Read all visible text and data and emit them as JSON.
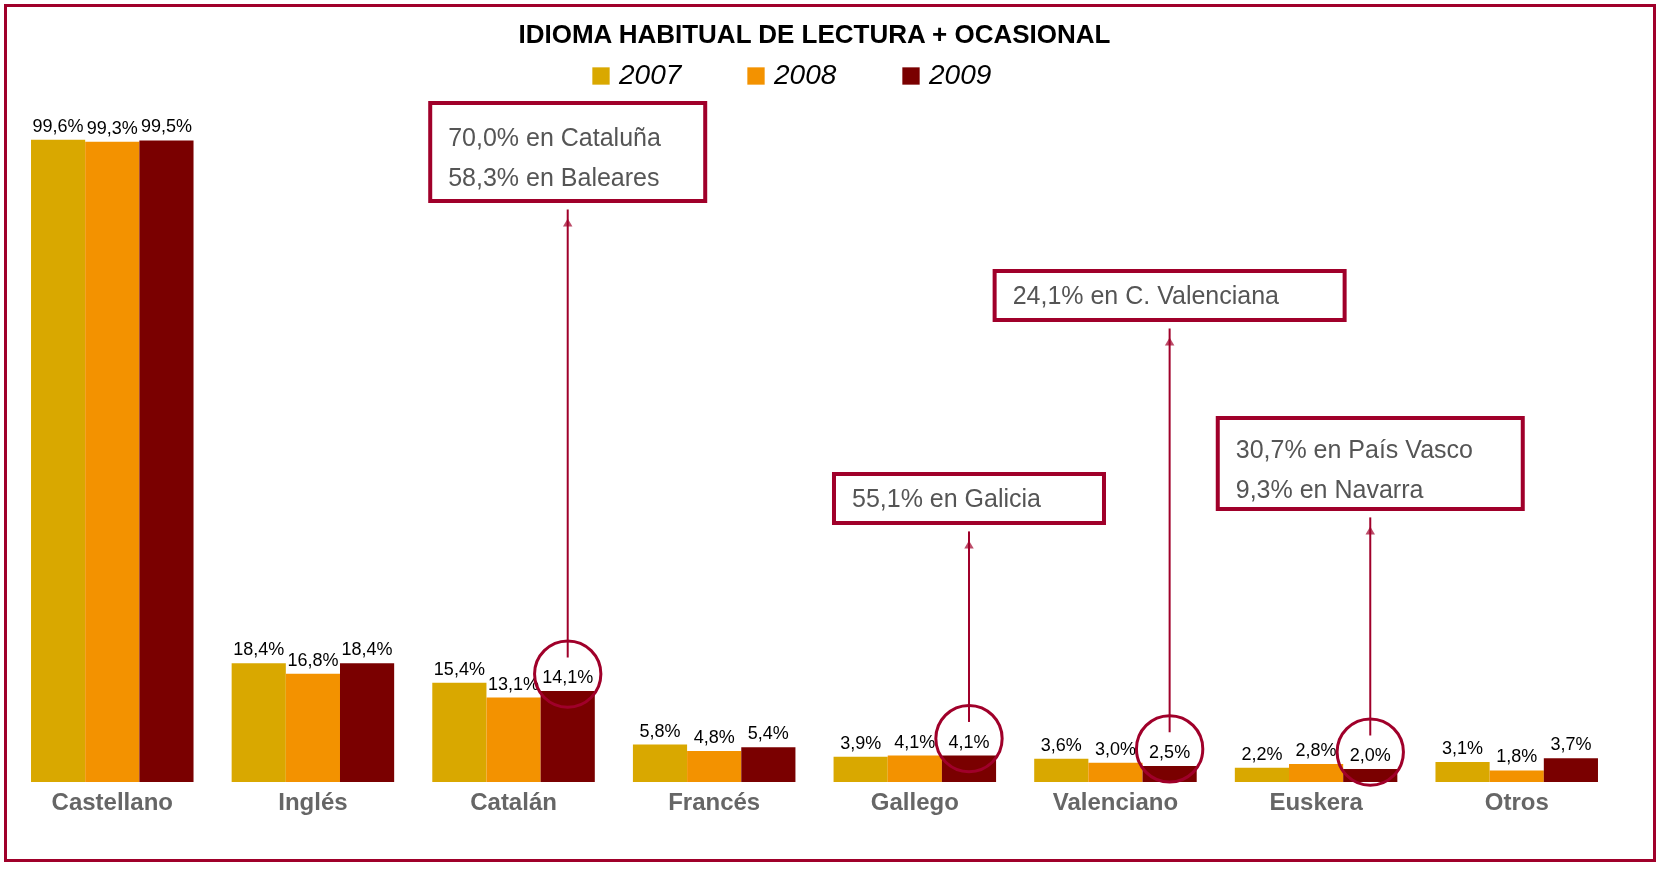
{
  "chart_data": {
    "type": "bar",
    "title": "IDIOMA HABITUAL DE LECTURA + OCASIONAL",
    "categories": [
      "Castellano",
      "Inglés",
      "Catalán",
      "Francés",
      "Gallego",
      "Valenciano",
      "Euskera",
      "Otros"
    ],
    "series": [
      {
        "name": "2007",
        "color": "#d9a800",
        "values": [
          99.6,
          18.4,
          15.4,
          5.8,
          3.9,
          3.6,
          2.2,
          3.1
        ],
        "value_labels": [
          "99,6%",
          "18,4%",
          "15,4%",
          "5,8%",
          "3,9%",
          "3,6%",
          "2,2%",
          "3,1%"
        ]
      },
      {
        "name": "2008",
        "color": "#f39200",
        "values": [
          99.3,
          16.8,
          13.1,
          4.8,
          4.1,
          3.0,
          2.8,
          1.8
        ],
        "value_labels": [
          "99,3%",
          "16,8%",
          "13,1%",
          "4,8%",
          "4,1%",
          "3,0%",
          "2,8%",
          "1,8%"
        ]
      },
      {
        "name": "2009",
        "color": "#7a0000",
        "values": [
          99.5,
          18.4,
          14.1,
          5.4,
          4.1,
          2.5,
          2.0,
          3.7
        ],
        "value_labels": [
          "99,5%",
          "18,4%",
          "14,1%",
          "5,4%",
          "4,1%",
          "2,5%",
          "2,0%",
          "3,7%"
        ]
      }
    ],
    "legend": "top",
    "annotations": [
      "70,0% en Cataluña\n58,3% en Baleares",
      "24,1% en C. Valenciana",
      "55,1% en Galicia",
      "30,7% en País Vasco\n9,3% en Navarra"
    ]
  }
}
